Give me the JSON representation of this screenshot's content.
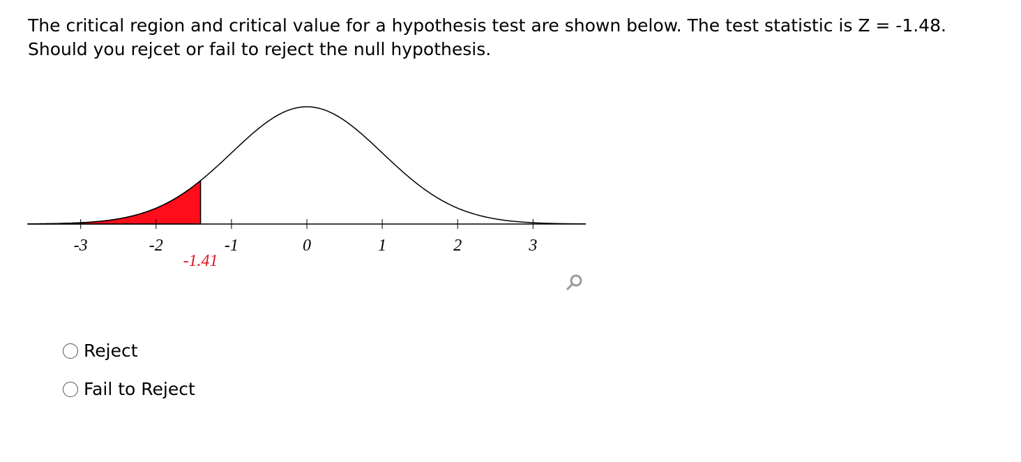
{
  "question": [
    "The critical region and critical value for a hypothesis test are shown below. The test statistic is Z = -1.48.",
    "Should you rejcet or fail to reject the null hypothesis."
  ],
  "chart_data": {
    "type": "normal-curve",
    "xlim": [
      -3.7,
      3.7
    ],
    "xticks": [
      -3,
      -2,
      -1,
      0,
      1,
      2,
      3
    ],
    "critical_value": -1.41,
    "region_color": "#ff0d1a",
    "critical_value_color": "#e0141c",
    "tail": "left"
  },
  "options": [
    "Reject",
    "Fail to Reject"
  ]
}
